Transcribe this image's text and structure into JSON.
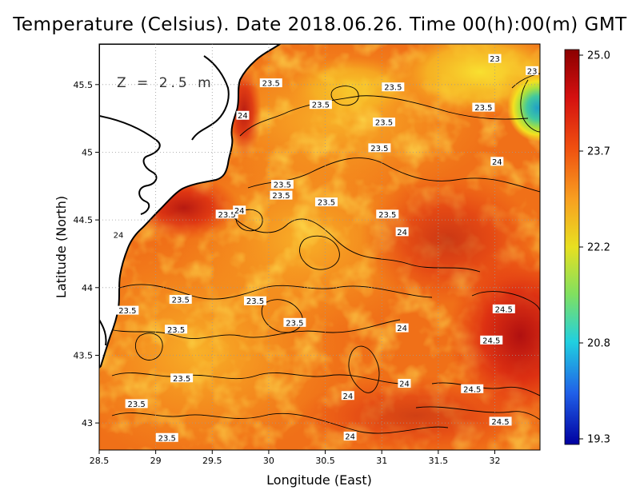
{
  "title": "Temperature (Celsius). Date 2018.06.26. Time 00(h):00(m) GMT",
  "depth_label": "Z = 2.5 m",
  "chart_data": {
    "type": "heatmap",
    "xlabel": "Longitude (East)",
    "ylabel": "Latitude (North)",
    "xlim": [
      28.5,
      32.4
    ],
    "ylim": [
      42.8,
      45.8
    ],
    "x_ticks": [
      "28.5",
      "29",
      "29.5",
      "30",
      "30.5",
      "31",
      "31.5",
      "32"
    ],
    "y_ticks": [
      "43",
      "43.5",
      "44",
      "44.5",
      "45",
      "45.5"
    ],
    "grid": true,
    "colorbar": {
      "min": 19.3,
      "max": 25.0,
      "tick_labels": [
        "25.0",
        "23.7",
        "22.2",
        "20.8",
        "19.3"
      ]
    },
    "contour_labels": [
      {
        "text": "23",
        "lon": 32.0,
        "lat": 45.69
      },
      {
        "text": "23",
        "lon": 32.33,
        "lat": 45.6
      },
      {
        "text": "23.5",
        "lon": 30.02,
        "lat": 45.51
      },
      {
        "text": "23.5",
        "lon": 30.46,
        "lat": 45.35
      },
      {
        "text": "23.5",
        "lon": 31.1,
        "lat": 45.48
      },
      {
        "text": "23.5",
        "lon": 31.9,
        "lat": 45.33
      },
      {
        "text": "23.5",
        "lon": 31.02,
        "lat": 45.22
      },
      {
        "text": "23.5",
        "lon": 30.98,
        "lat": 45.03
      },
      {
        "text": "24",
        "lon": 29.77,
        "lat": 45.27
      },
      {
        "text": "24",
        "lon": 32.02,
        "lat": 44.93
      },
      {
        "text": "23.5",
        "lon": 30.12,
        "lat": 44.76
      },
      {
        "text": "23.5",
        "lon": 30.11,
        "lat": 44.68
      },
      {
        "text": "23.5",
        "lon": 30.51,
        "lat": 44.63
      },
      {
        "text": "23.5",
        "lon": 29.63,
        "lat": 44.54
      },
      {
        "text": "24",
        "lon": 29.74,
        "lat": 44.57
      },
      {
        "text": "23.5",
        "lon": 31.05,
        "lat": 44.54
      },
      {
        "text": "24",
        "lon": 28.67,
        "lat": 44.39
      },
      {
        "text": "24",
        "lon": 31.18,
        "lat": 44.41
      },
      {
        "text": "23.5",
        "lon": 29.22,
        "lat": 43.91
      },
      {
        "text": "23.5",
        "lon": 29.88,
        "lat": 43.9
      },
      {
        "text": "23.5",
        "lon": 28.75,
        "lat": 43.83
      },
      {
        "text": "24.5",
        "lon": 32.08,
        "lat": 43.84
      },
      {
        "text": "23.5",
        "lon": 30.23,
        "lat": 43.74
      },
      {
        "text": "23.5",
        "lon": 29.18,
        "lat": 43.69
      },
      {
        "text": "24",
        "lon": 31.18,
        "lat": 43.7
      },
      {
        "text": "24.5",
        "lon": 31.97,
        "lat": 43.61
      },
      {
        "text": "23.5",
        "lon": 29.23,
        "lat": 43.33
      },
      {
        "text": "24",
        "lon": 31.2,
        "lat": 43.29
      },
      {
        "text": "24.5",
        "lon": 31.8,
        "lat": 43.25
      },
      {
        "text": "24",
        "lon": 30.7,
        "lat": 43.2
      },
      {
        "text": "23.5",
        "lon": 28.83,
        "lat": 43.14
      },
      {
        "text": "24.5",
        "lon": 32.05,
        "lat": 43.01
      },
      {
        "text": "23.5",
        "lon": 29.1,
        "lat": 42.89
      },
      {
        "text": "24",
        "lon": 30.72,
        "lat": 42.9
      }
    ]
  },
  "colors": {
    "background": "#ffffff",
    "land": "#ffffff",
    "coast": "#000000",
    "grid": "#b0b0b0"
  }
}
